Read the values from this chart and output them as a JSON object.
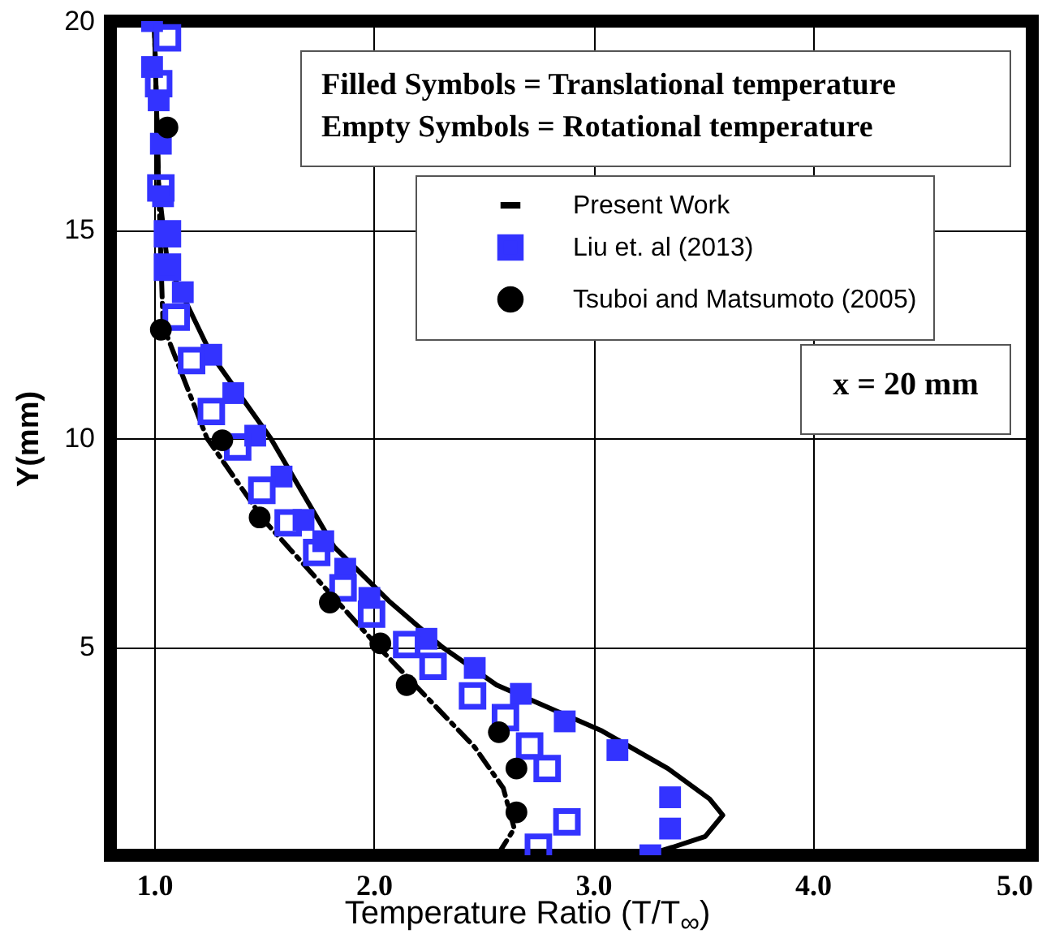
{
  "chart_data": {
    "type": "scatter",
    "xlabel": "Temperature Ratio (T/T$_{∞}$)",
    "ylabel": "Y(mm)",
    "annotations": [
      "Filled Symbols   = Translational temperature",
      "Empty Symbols = Rotational temperature",
      "x = 20 mm"
    ],
    "xlim": [
      0.8,
      5
    ],
    "ylim": [
      0,
      20
    ],
    "xticks": [
      {
        "value": 1,
        "label": "1.0"
      },
      {
        "value": 2,
        "label": "2.0"
      },
      {
        "value": 3,
        "label": "3.0"
      },
      {
        "value": 4,
        "label": "4.0"
      },
      {
        "value": 5,
        "label": "5.0"
      }
    ],
    "yticks": [
      5,
      10,
      15,
      20
    ],
    "grid": true,
    "legend": "top right",
    "series": [
      {
        "name": "Present Work",
        "type": "line",
        "line_style": "solid",
        "color": "#000000",
        "x": [
          1.0,
          1.02,
          1.06,
          1.15,
          1.26,
          1.53,
          1.82,
          2.07,
          2.31,
          2.56,
          3.04,
          3.34,
          3.53,
          3.59,
          3.51,
          3.36,
          3.24
        ],
        "values": [
          20,
          16,
          14.2,
          13.2,
          12,
          10,
          7.39,
          6.09,
          5,
          4.08,
          2.98,
          2.08,
          1.35,
          0.96,
          0.45,
          0.19,
          0
        ]
      },
      {
        "type": "line",
        "line_style": "dashed",
        "color": "#000000",
        "x": [
          1.0,
          1.02,
          1.04,
          1.24,
          1.5,
          2.02,
          2.34,
          2.46,
          2.59,
          2.64,
          2.58
        ],
        "values": [
          20,
          16,
          12.7,
          10,
          8.03,
          5,
          3.25,
          2.59,
          1.61,
          0.64,
          0.14
        ]
      },
      {
        "name": "Liu et. al (2013)",
        "marker": "square",
        "color": "#3333ff",
        "x": [
          0.99,
          0.99,
          1.02,
          1.03,
          1.04,
          1.05,
          1.06,
          1.13,
          1.26,
          1.36,
          1.46,
          1.58,
          1.68,
          1.77,
          1.87,
          1.98,
          2.24,
          2.46,
          2.67,
          2.87,
          3.11,
          3.35,
          3.35,
          3.26
        ],
        "values": [
          20,
          18.9,
          18.1,
          17.06,
          15.8,
          14.85,
          14.1,
          13.5,
          12,
          11.08,
          10.06,
          9.08,
          8.04,
          7.53,
          6.87,
          6.17,
          5.19,
          4.49,
          3.87,
          3.21,
          2.52,
          1.39,
          0.64,
          0
        ]
      },
      {
        "marker": "square",
        "color": "#3333ff",
        "x": [
          1.06,
          1.02,
          1.03,
          1.06,
          1.06,
          1.1,
          1.17,
          1.26,
          1.38,
          1.49,
          1.61,
          1.74,
          1.86,
          1.99,
          2.15,
          2.27,
          2.45,
          2.6,
          2.71,
          2.79,
          2.88,
          2.75
        ],
        "values": [
          19.6,
          18.5,
          16,
          14.9,
          14.1,
          12.9,
          11.86,
          10.64,
          9.79,
          8.75,
          7.97,
          7.26,
          6.41,
          5.78,
          5.05,
          4.53,
          3.82,
          3.3,
          2.62,
          2.08,
          0.8,
          0.19
        ]
      },
      {
        "name": "Tsuboi and Matsumoto (2005)",
        "marker": "circle",
        "color": "#000000",
        "x": [
          1.06,
          1.03,
          1.31,
          1.48,
          1.8,
          2.03,
          2.15,
          2.57,
          2.65,
          2.65
        ],
        "values": [
          17.45,
          12.6,
          9.95,
          8.1,
          6.06,
          5.08,
          4.08,
          2.95,
          2.08,
          1.03
        ]
      }
    ]
  }
}
